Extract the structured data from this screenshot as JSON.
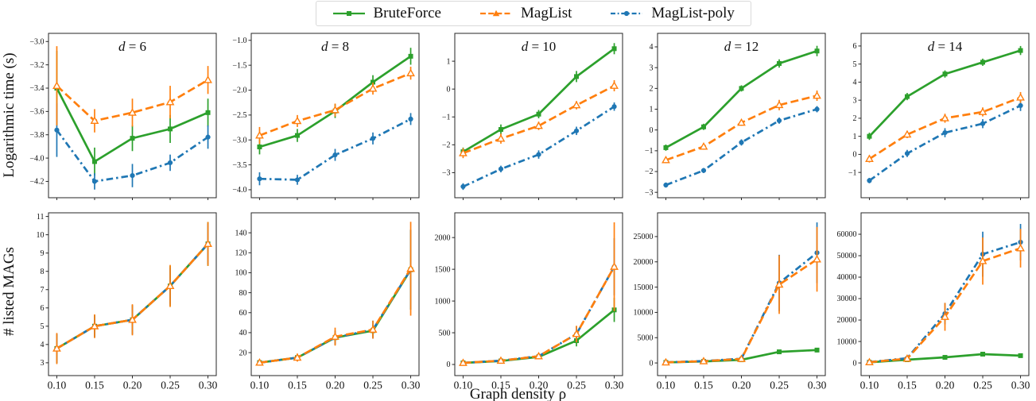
{
  "figure": {
    "ylabel_top": "Logarithmic time (s)",
    "ylabel_bottom": "# listed MAGs",
    "xlabel": "Graph density ρ"
  },
  "legend": {
    "items": [
      {
        "label": "BruteForce",
        "color": "#2ca02c",
        "marker": "square",
        "dash": "solid"
      },
      {
        "label": "MagList",
        "color": "#ff7f0e",
        "marker": "triangle",
        "dash": "dashed"
      },
      {
        "label": "MagList-poly",
        "color": "#1f77b4",
        "marker": "circle",
        "dash": "dashdot"
      }
    ]
  },
  "chart_data": {
    "type": "line",
    "error_bars": true,
    "x": [
      0.1,
      0.15,
      0.2,
      0.25,
      0.3
    ],
    "xtick_labels": [
      "0.10",
      "0.15",
      "0.20",
      "0.25",
      "0.30"
    ],
    "xlim": [
      0.089,
      0.311
    ],
    "xlabel": "Graph density ρ",
    "series_styles": [
      {
        "name": "BruteForce",
        "color": "#2ca02c",
        "marker": "square",
        "dash": null
      },
      {
        "name": "MagList",
        "color": "#ff7f0e",
        "marker": "triangle",
        "dash": "10 4.5"
      },
      {
        "name": "MagList-poly",
        "color": "#1f77b4",
        "marker": "circle",
        "dash": "8.5 4 2.5 4"
      }
    ],
    "rows": [
      {
        "ylabel": "Logarithmic time (s)",
        "plots": [
          {
            "title": "d = 6",
            "ylim": [
              -4.34,
              -2.93
            ],
            "yticks": [
              -3.0,
              -3.2,
              -3.4,
              -3.6,
              -3.8,
              -4.0,
              -4.2
            ],
            "ytick_labels": [
              "−3.0",
              "−3.2",
              "−3.4",
              "−3.6",
              "−3.8",
              "−4.0",
              "−4.2"
            ],
            "series": [
              {
                "name": "BruteForce",
                "values": [
                  -3.4,
                  -4.03,
                  -3.83,
                  -3.75,
                  -3.61
                ],
                "errors": [
                  0.32,
                  0.12,
                  0.11,
                  0.12,
                  0.12
                ]
              },
              {
                "name": "MagList",
                "values": [
                  -3.38,
                  -3.68,
                  -3.61,
                  -3.52,
                  -3.33
                ],
                "errors": [
                  0.34,
                  0.1,
                  0.12,
                  0.14,
                  0.12
                ]
              },
              {
                "name": "MagList-poly",
                "values": [
                  -3.76,
                  -4.2,
                  -4.15,
                  -4.04,
                  -3.82
                ],
                "errors": [
                  0.23,
                  0.07,
                  0.1,
                  0.07,
                  0.1
                ]
              }
            ]
          },
          {
            "title": "d = 8",
            "ylim": [
              -4.16,
              -0.86
            ],
            "yticks": [
              -1.0,
              -1.5,
              -2.0,
              -2.5,
              -3.0,
              -3.5,
              -4.0
            ],
            "ytick_labels": [
              "−1.0",
              "−1.5",
              "−2.0",
              "−2.5",
              "−3.0",
              "−3.5",
              "−4.0"
            ],
            "series": [
              {
                "name": "BruteForce",
                "values": [
                  -3.14,
                  -2.91,
                  -2.42,
                  -1.84,
                  -1.32
                ],
                "errors": [
                  0.15,
                  0.13,
                  0.14,
                  0.14,
                  0.17
                ]
              },
              {
                "name": "MagList",
                "values": [
                  -2.91,
                  -2.62,
                  -2.4,
                  -1.97,
                  -1.66
                ],
                "errors": [
                  0.17,
                  0.12,
                  0.13,
                  0.12,
                  0.13
                ]
              },
              {
                "name": "MagList-poly",
                "values": [
                  -3.78,
                  -3.8,
                  -3.3,
                  -2.97,
                  -2.58
                ],
                "errors": [
                  0.13,
                  0.1,
                  0.12,
                  0.12,
                  0.12
                ]
              }
            ]
          },
          {
            "title": "d = 10",
            "ylim": [
              -3.9,
              2.0
            ],
            "yticks": [
              1,
              0,
              -1,
              -2,
              -3
            ],
            "ytick_labels": [
              "1",
              "0",
              "−1",
              "−2",
              "−3"
            ],
            "series": [
              {
                "name": "BruteForce",
                "values": [
                  -2.25,
                  -1.45,
                  -0.9,
                  0.45,
                  1.45
                ],
                "errors": [
                  0.15,
                  0.18,
                  0.15,
                  0.2,
                  0.2
                ]
              },
              {
                "name": "MagList",
                "values": [
                  -2.3,
                  -1.78,
                  -1.32,
                  -0.58,
                  0.12
                ],
                "errors": [
                  0.18,
                  0.18,
                  0.15,
                  0.15,
                  0.2
                ]
              },
              {
                "name": "MagList-poly",
                "values": [
                  -3.5,
                  -2.87,
                  -2.35,
                  -1.5,
                  -0.63
                ],
                "errors": [
                  0.12,
                  0.12,
                  0.15,
                  0.15,
                  0.15
                ]
              }
            ]
          },
          {
            "title": "d = 12",
            "ylim": [
              -3.26,
              4.65
            ],
            "yticks": [
              4,
              3,
              2,
              1,
              0,
              -1,
              -2,
              -3
            ],
            "ytick_labels": [
              "4",
              "3",
              "2",
              "1",
              "0",
              "−1",
              "−2",
              "−3"
            ],
            "series": [
              {
                "name": "BruteForce",
                "values": [
                  -0.85,
                  0.15,
                  2.0,
                  3.2,
                  3.8
                ],
                "errors": [
                  0.15,
                  0.15,
                  0.15,
                  0.2,
                  0.25
                ]
              },
              {
                "name": "MagList",
                "values": [
                  -1.45,
                  -0.8,
                  0.35,
                  1.2,
                  1.65
                ],
                "errors": [
                  0.15,
                  0.15,
                  0.15,
                  0.25,
                  0.25
                ]
              },
              {
                "name": "MagList-poly",
                "values": [
                  -2.65,
                  -1.95,
                  -0.6,
                  0.45,
                  1.0
                ],
                "errors": [
                  0.12,
                  0.12,
                  0.15,
                  0.15,
                  0.15
                ]
              }
            ]
          },
          {
            "title": "d = 14",
            "ylim": [
              -2.4,
              6.7
            ],
            "yticks": [
              6,
              5,
              4,
              3,
              2,
              1,
              0,
              -1
            ],
            "ytick_labels": [
              "6",
              "5",
              "4",
              "3",
              "2",
              "1",
              "0",
              "−1"
            ],
            "series": [
              {
                "name": "BruteForce",
                "values": [
                  1.0,
                  3.2,
                  4.45,
                  5.1,
                  5.75
                ],
                "errors": [
                  0.2,
                  0.2,
                  0.2,
                  0.2,
                  0.25
                ]
              },
              {
                "name": "MagList",
                "values": [
                  -0.25,
                  1.1,
                  2.0,
                  2.35,
                  3.15
                ],
                "errors": [
                  0.2,
                  0.2,
                  0.25,
                  0.25,
                  0.3
                ]
              },
              {
                "name": "MagList-poly",
                "values": [
                  -1.45,
                  0.05,
                  1.2,
                  1.7,
                  2.7
                ],
                "errors": [
                  0.15,
                  0.2,
                  0.25,
                  0.25,
                  0.3
                ]
              }
            ]
          }
        ]
      },
      {
        "ylabel": "# listed MAGs",
        "plots": [
          {
            "title": null,
            "ylim": [
              2.3,
              11.2
            ],
            "yticks": [
              3,
              4,
              5,
              6,
              7,
              8,
              9,
              10,
              11
            ],
            "ytick_labels": [
              "3",
              "4",
              "5",
              "6",
              "7",
              "8",
              "9",
              "10",
              "11"
            ],
            "series": [
              {
                "name": "BruteForce",
                "values": [
                  3.78,
                  5.0,
                  5.35,
                  7.2,
                  9.5
                ],
                "errors": [
                  0.8,
                  0.6,
                  0.8,
                  1.1,
                  1.2
                ]
              },
              {
                "name": "MagList",
                "values": [
                  3.78,
                  5.0,
                  5.35,
                  7.2,
                  9.5
                ],
                "errors": [
                  0.85,
                  0.65,
                  0.85,
                  1.15,
                  1.2
                ]
              },
              {
                "name": "MagList-poly",
                "values": [
                  3.78,
                  5.0,
                  5.35,
                  7.2,
                  9.5
                ],
                "errors": [
                  0.8,
                  0.6,
                  0.8,
                  1.0,
                  1.1
                ]
              }
            ]
          },
          {
            "title": null,
            "ylim": [
              -3,
              160
            ],
            "yticks": [
              20,
              40,
              60,
              80,
              100,
              120,
              140
            ],
            "ytick_labels": [
              "20",
              "40",
              "60",
              "80",
              "100",
              "120",
              "140"
            ],
            "series": [
              {
                "name": "BruteForce",
                "values": [
                  10,
                  15,
                  35,
                  42,
                  103
                ],
                "errors": [
                  2,
                  3,
                  7,
                  6,
                  40
                ]
              },
              {
                "name": "MagList",
                "values": [
                  10,
                  15,
                  36,
                  43,
                  104
                ],
                "errors": [
                  3,
                  4,
                  9,
                  9,
                  47
                ]
              },
              {
                "name": "MagList-poly",
                "values": [
                  10,
                  15,
                  35,
                  43,
                  103
                ],
                "errors": [
                  2,
                  3,
                  7,
                  9,
                  40
                ]
              }
            ]
          },
          {
            "title": null,
            "ylim": [
              -175,
              2390
            ],
            "yticks": [
              0,
              500,
              1000,
              1500,
              2000
            ],
            "ytick_labels": [
              "0",
              "500",
              "1000",
              "1500",
              "2000"
            ],
            "series": [
              {
                "name": "BruteForce",
                "values": [
                  25,
                  55,
                  120,
                  375,
                  860
                ],
                "errors": [
                  8,
                  15,
                  30,
                  90,
                  190
                ]
              },
              {
                "name": "MagList",
                "values": [
                  25,
                  60,
                  130,
                  480,
                  1540
                ],
                "errors": [
                  10,
                  18,
                  45,
                  130,
                  700
                ]
              },
              {
                "name": "MagList-poly",
                "values": [
                  25,
                  60,
                  130,
                  480,
                  1540
                ],
                "errors": [
                  10,
                  18,
                  45,
                  120,
                  450
                ]
              }
            ]
          },
          {
            "title": null,
            "ylim": [
              -2500,
              29700
            ],
            "yticks": [
              0,
              5000,
              10000,
              15000,
              20000,
              25000
            ],
            "ytick_labels": [
              "0",
              "5000",
              "10000",
              "15000",
              "20000",
              "25000"
            ],
            "series": [
              {
                "name": "BruteForce",
                "values": [
                  100,
                  300,
                  630,
                  2200,
                  2550
                ],
                "errors": [
                  40,
                  90,
                  160,
                  400,
                  450
                ]
              },
              {
                "name": "MagList",
                "values": [
                  120,
                  350,
                  800,
                  15500,
                  20500
                ],
                "errors": [
                  50,
                  120,
                  280,
                  5800,
                  6400
                ]
              },
              {
                "name": "MagList-poly",
                "values": [
                  130,
                  370,
                  850,
                  15800,
                  21800
                ],
                "errors": [
                  50,
                  120,
                  280,
                  5600,
                  6000
                ]
              }
            ]
          },
          {
            "title": null,
            "ylim": [
              -5900,
              70000
            ],
            "yticks": [
              0,
              10000,
              20000,
              30000,
              40000,
              50000,
              60000
            ],
            "ytick_labels": [
              "0",
              "10000",
              "20000",
              "30000",
              "40000",
              "50000",
              "60000"
            ],
            "series": [
              {
                "name": "BruteForce",
                "values": [
                  300,
                  1500,
                  2600,
                  4100,
                  3400
                ],
                "errors": [
                  100,
                  400,
                  700,
                  1100,
                  900
                ]
              },
              {
                "name": "MagList",
                "values": [
                  350,
                  2000,
                  21500,
                  47500,
                  53500
                ],
                "errors": [
                  150,
                  600,
                  6500,
                  11000,
                  9000
                ]
              },
              {
                "name": "MagList-poly",
                "values": [
                  400,
                  2200,
                  23000,
                  50700,
                  56300
                ],
                "errors": [
                  150,
                  600,
                  5000,
                  10500,
                  8500
                ]
              }
            ]
          }
        ]
      }
    ]
  }
}
